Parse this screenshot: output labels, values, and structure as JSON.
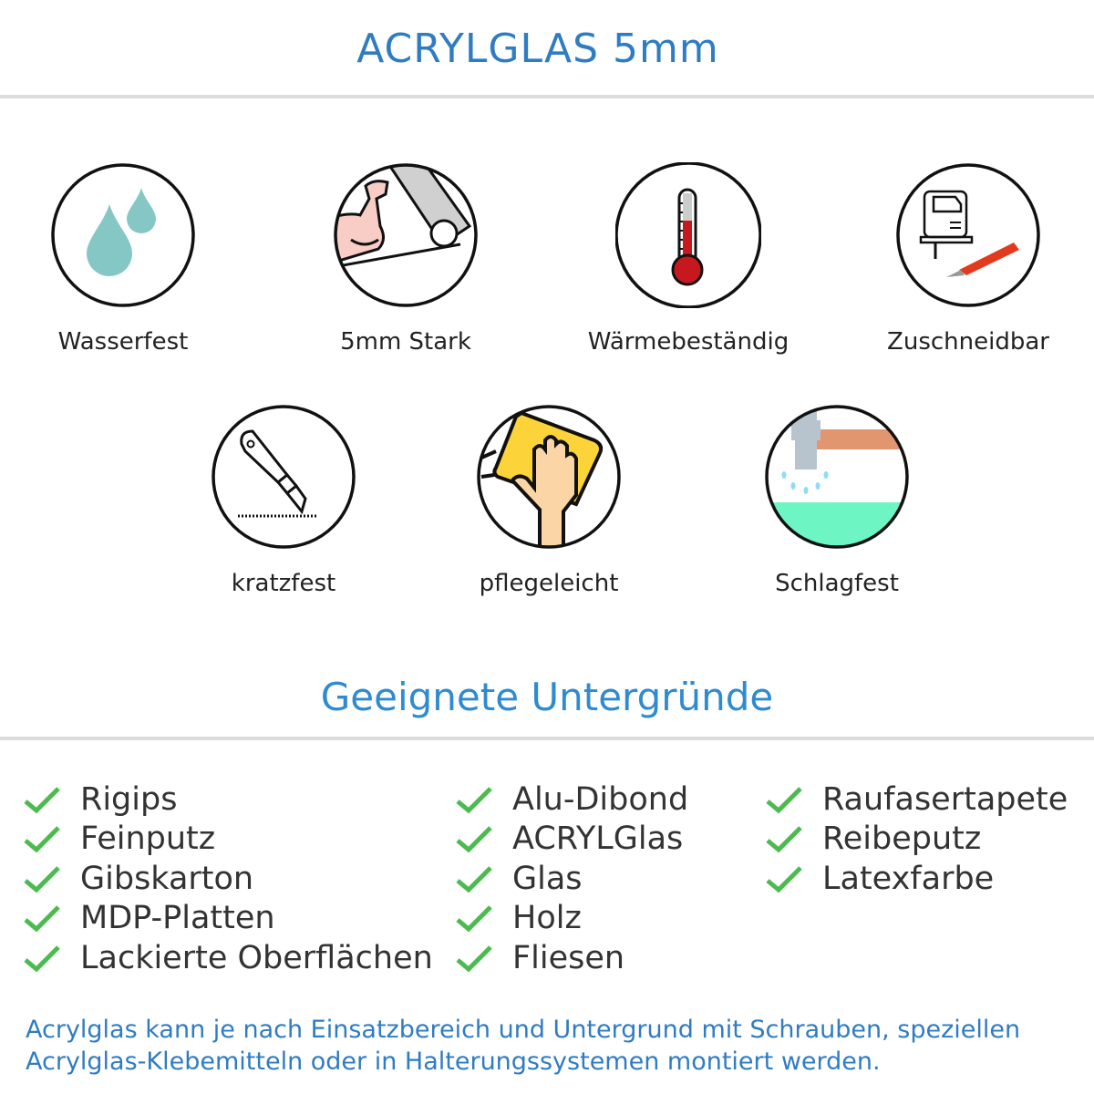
{
  "header": {
    "title": "ACRYLGLAS 5mm"
  },
  "features": [
    {
      "label": "Wasserfest",
      "icon": "water-drops-icon"
    },
    {
      "label": "5mm Stark",
      "icon": "strong-arm-icon"
    },
    {
      "label": "Wärmebeständig",
      "icon": "thermometer-icon"
    },
    {
      "label": "Zuschneidbar",
      "icon": "jigsaw-cutter-icon"
    },
    {
      "label": "kratzfest",
      "icon": "box-cutter-icon"
    },
    {
      "label": "pflegeleicht",
      "icon": "cleaning-hand-icon"
    },
    {
      "label": "Schlagfest",
      "icon": "hammer-icon"
    }
  ],
  "surfaces": {
    "title": "Geeignete Untergründe",
    "columns": [
      [
        "Rigips",
        "Feinputz",
        "Gibskarton",
        "MDP-Platten",
        "Lackierte Oberflächen"
      ],
      [
        "Alu-Dibond",
        "ACRYLGlas",
        "Glas",
        "Holz",
        "Fliesen"
      ],
      [
        "Raufasertapete",
        "Reibeputz",
        "Latexfarbe"
      ]
    ],
    "check_color": "#4cbb4f"
  },
  "footer": {
    "note": "Acrylglas kann je nach Einsatzbereich und Untergrund mit Schrauben, speziellen Acrylglas-Klebemitteln oder in Halterungssystemen montiert werden."
  },
  "colors": {
    "title": "#2f7cc3",
    "text": "#333333"
  }
}
